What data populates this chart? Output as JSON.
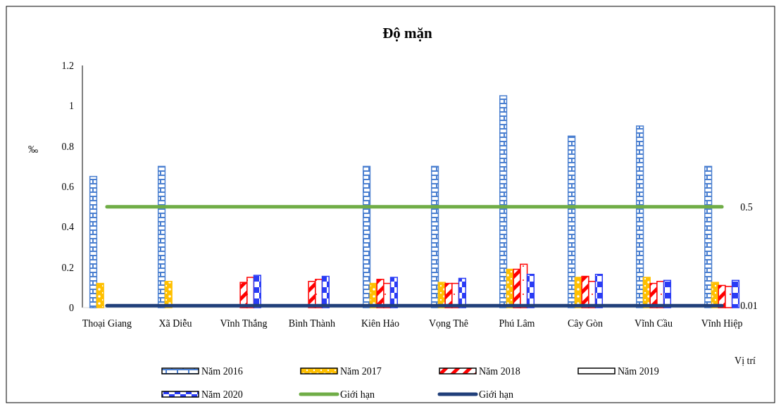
{
  "chart_data": {
    "type": "bar",
    "title": "Độ mặn",
    "xlabel": "Vị trí",
    "ylabel": "‰",
    "categories": [
      "Thoại Giang",
      "Xã Diễu",
      "Vĩnh Thắng",
      "Bình Thành",
      "Kiên Hảo",
      "Vọng Thê",
      "Phú Lâm",
      "Cây Gòn",
      "Vĩnh Cầu",
      "Vĩnh Hiệp"
    ],
    "series": [
      {
        "name": "Năm 2016",
        "color": "#4a7fd0",
        "values": [
          0.65,
          0.7,
          null,
          null,
          0.7,
          0.7,
          1.05,
          0.85,
          0.9,
          0.7
        ]
      },
      {
        "name": "Năm 2017",
        "color": "#ffc000",
        "values": [
          0.12,
          0.13,
          null,
          null,
          0.12,
          0.125,
          0.19,
          0.15,
          0.15,
          0.125
        ]
      },
      {
        "name": "Năm 2018",
        "color": "#ff0000",
        "values": [
          null,
          null,
          0.125,
          0.13,
          0.14,
          0.12,
          0.19,
          0.155,
          0.12,
          0.11
        ]
      },
      {
        "name": "Năm 2019",
        "color": "#ff0000",
        "values": [
          null,
          null,
          0.15,
          0.14,
          0.12,
          0.12,
          0.215,
          0.13,
          0.13,
          0.105
        ]
      },
      {
        "name": "Năm 2020",
        "color": "#2a3cf5",
        "values": [
          null,
          null,
          0.16,
          0.155,
          0.15,
          0.145,
          0.165,
          0.165,
          0.135,
          0.135
        ]
      },
      {
        "name": "Giới hạn",
        "type": "line",
        "color": "#70ad47",
        "values": [
          0.5,
          0.5,
          0.5,
          0.5,
          0.5,
          0.5,
          0.5,
          0.5,
          0.5,
          0.5
        ],
        "value_labels": [
          null,
          null,
          null,
          null,
          null,
          null,
          null,
          null,
          null,
          "0.5"
        ]
      },
      {
        "name": "Giới hạn",
        "type": "line",
        "color": "#203f7a",
        "values": [
          0.01,
          0.01,
          0.01,
          0.01,
          0.01,
          0.01,
          0.01,
          0.01,
          0.01,
          0.01
        ],
        "value_labels": [
          null,
          null,
          null,
          null,
          null,
          null,
          null,
          null,
          null,
          "0.01"
        ]
      }
    ],
    "ylim": [
      0,
      1.2
    ],
    "yticks": [
      0,
      0.2,
      0.4,
      0.6,
      0.8,
      1,
      1.2
    ],
    "grid": false,
    "legend": "bottom"
  }
}
